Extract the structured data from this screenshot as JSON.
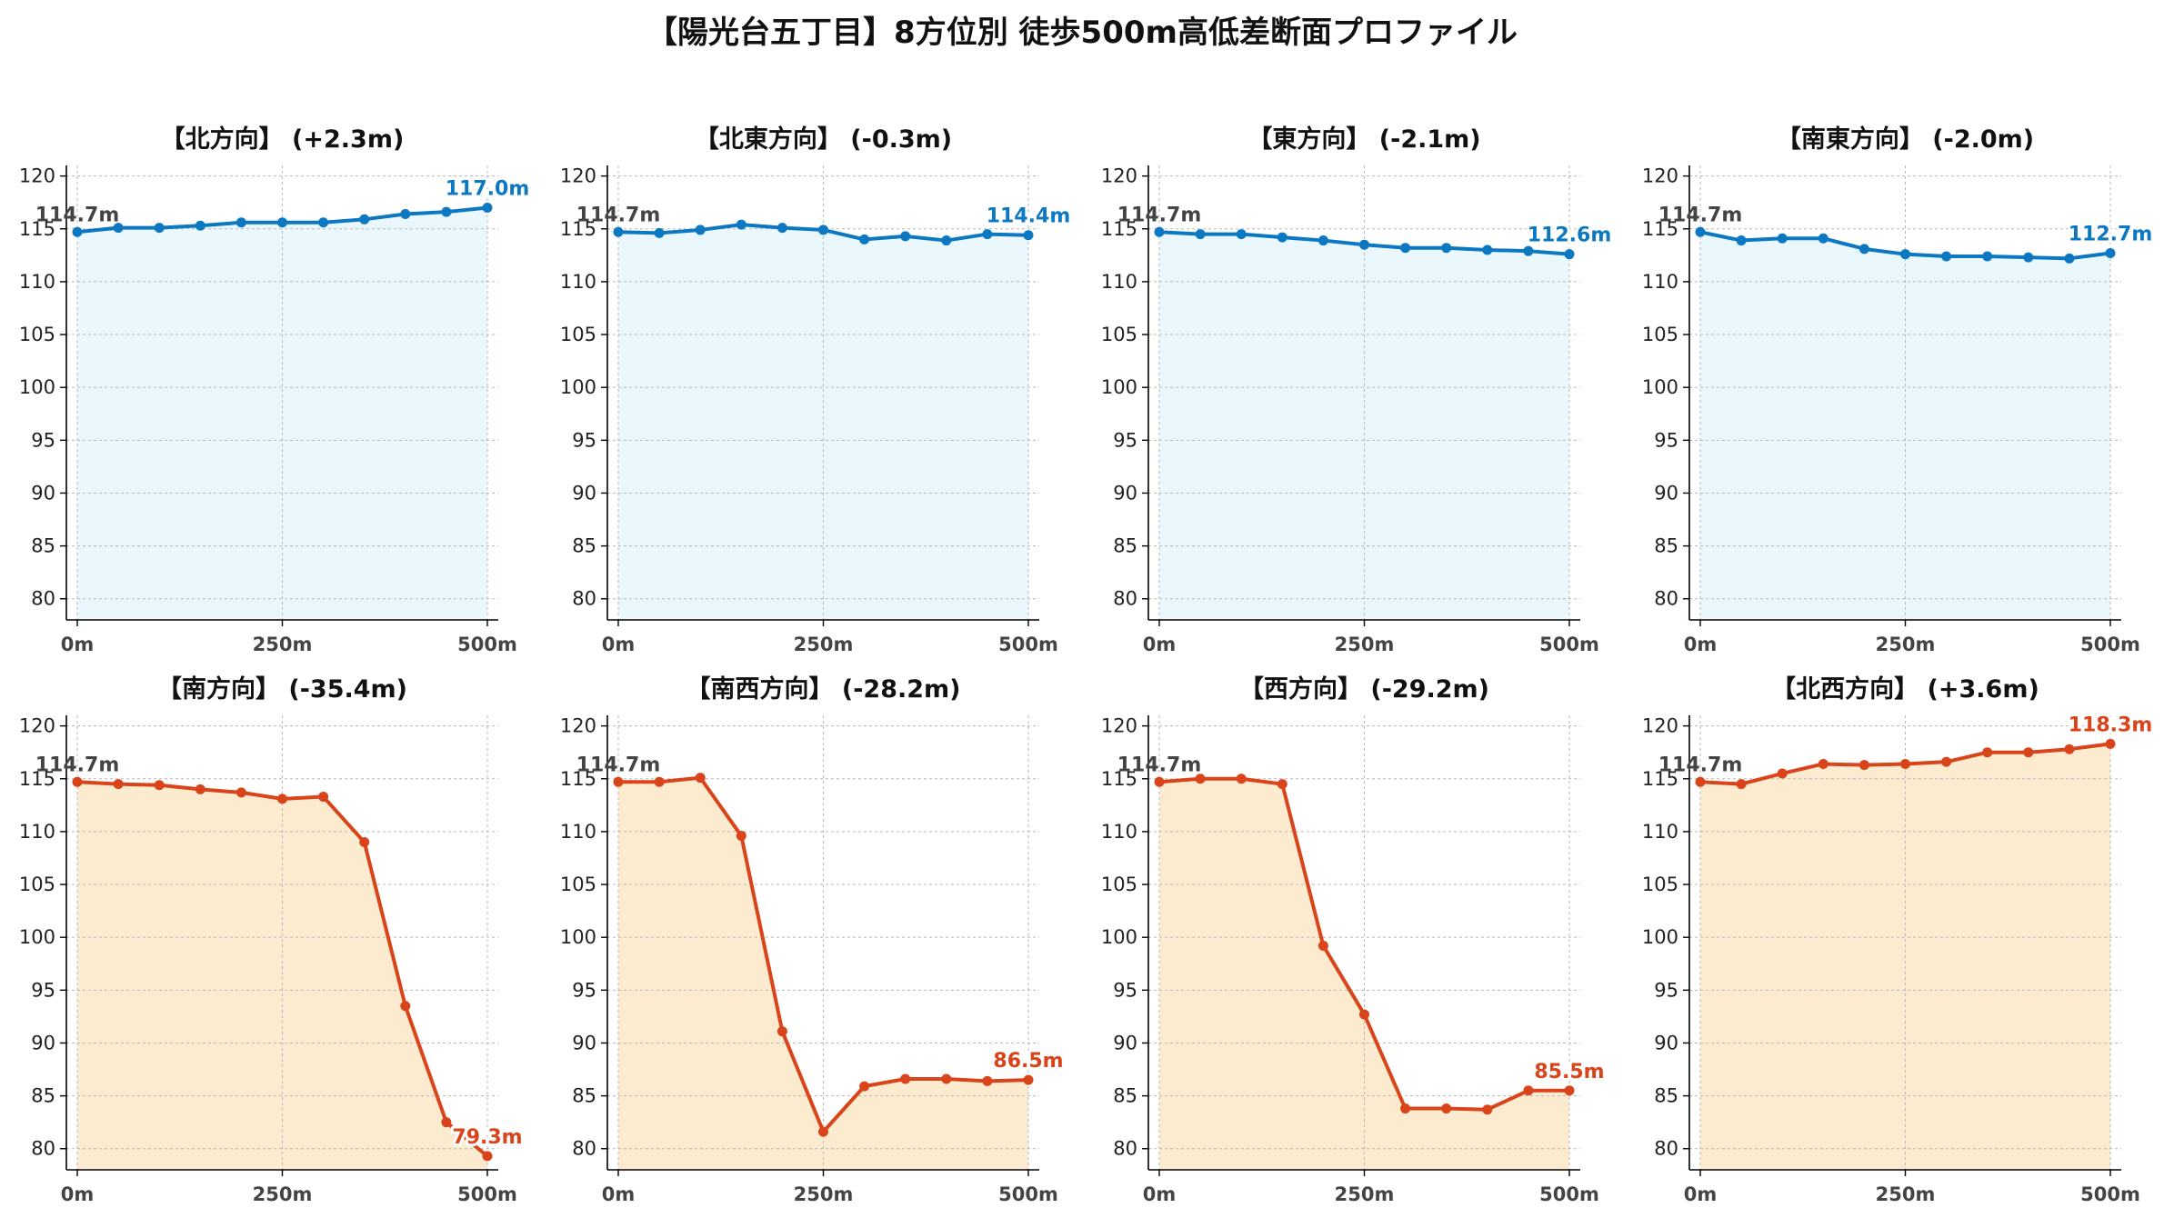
{
  "title": "【陽光台五丁目】8方位別 徒歩500m高低差断面プロファイル",
  "colors": {
    "up_line": "#0c78c2",
    "up_fill": "#eaf7fc",
    "down_line": "#d9441a",
    "down_fill": "#fdebd0",
    "start_label": "#444444"
  },
  "chart_data": [
    {
      "type": "area",
      "title": "【北方向】 (+2.3m)",
      "x": [
        0,
        50,
        100,
        150,
        200,
        250,
        300,
        350,
        400,
        450,
        500
      ],
      "x_tick_values": [
        0,
        250,
        500
      ],
      "x_tick_labels": [
        "0m",
        "250m",
        "500m"
      ],
      "y": [
        114.7,
        115.1,
        115.1,
        115.3,
        115.6,
        115.6,
        115.6,
        115.9,
        116.4,
        116.6,
        117.0
      ],
      "ylim": [
        78,
        121
      ],
      "yticks": [
        80,
        85,
        90,
        95,
        100,
        105,
        110,
        115,
        120
      ],
      "start_label": "114.7m",
      "end_label": "117.0m",
      "tone": "up",
      "grid": true
    },
    {
      "type": "area",
      "title": "【北東方向】 (-0.3m)",
      "x": [
        0,
        50,
        100,
        150,
        200,
        250,
        300,
        350,
        400,
        450,
        500
      ],
      "x_tick_values": [
        0,
        250,
        500
      ],
      "x_tick_labels": [
        "0m",
        "250m",
        "500m"
      ],
      "y": [
        114.7,
        114.6,
        114.9,
        115.4,
        115.1,
        114.9,
        114.0,
        114.3,
        113.9,
        114.5,
        114.4
      ],
      "ylim": [
        78,
        121
      ],
      "yticks": [
        80,
        85,
        90,
        95,
        100,
        105,
        110,
        115,
        120
      ],
      "start_label": "114.7m",
      "end_label": "114.4m",
      "tone": "up",
      "grid": true
    },
    {
      "type": "area",
      "title": "【東方向】 (-2.1m)",
      "x": [
        0,
        50,
        100,
        150,
        200,
        250,
        300,
        350,
        400,
        450,
        500
      ],
      "x_tick_values": [
        0,
        250,
        500
      ],
      "x_tick_labels": [
        "0m",
        "250m",
        "500m"
      ],
      "y": [
        114.7,
        114.5,
        114.5,
        114.2,
        113.9,
        113.5,
        113.2,
        113.2,
        113.0,
        112.9,
        112.6
      ],
      "ylim": [
        78,
        121
      ],
      "yticks": [
        80,
        85,
        90,
        95,
        100,
        105,
        110,
        115,
        120
      ],
      "start_label": "114.7m",
      "end_label": "112.6m",
      "tone": "up",
      "grid": true
    },
    {
      "type": "area",
      "title": "【南東方向】 (-2.0m)",
      "x": [
        0,
        50,
        100,
        150,
        200,
        250,
        300,
        350,
        400,
        450,
        500
      ],
      "x_tick_values": [
        0,
        250,
        500
      ],
      "x_tick_labels": [
        "0m",
        "250m",
        "500m"
      ],
      "y": [
        114.7,
        113.9,
        114.1,
        114.1,
        113.1,
        112.6,
        112.4,
        112.4,
        112.3,
        112.2,
        112.7
      ],
      "ylim": [
        78,
        121
      ],
      "yticks": [
        80,
        85,
        90,
        95,
        100,
        105,
        110,
        115,
        120
      ],
      "start_label": "114.7m",
      "end_label": "112.7m",
      "tone": "up",
      "grid": true
    },
    {
      "type": "area",
      "title": "【南方向】 (-35.4m)",
      "x": [
        0,
        50,
        100,
        150,
        200,
        250,
        300,
        350,
        400,
        450,
        500
      ],
      "x_tick_values": [
        0,
        250,
        500
      ],
      "x_tick_labels": [
        "0m",
        "250m",
        "500m"
      ],
      "y": [
        114.7,
        114.5,
        114.4,
        114.0,
        113.7,
        113.1,
        113.3,
        109.0,
        93.5,
        82.5,
        79.3
      ],
      "ylim": [
        78,
        121
      ],
      "yticks": [
        80,
        85,
        90,
        95,
        100,
        105,
        110,
        115,
        120
      ],
      "start_label": "114.7m",
      "end_label": "79.3m",
      "tone": "down",
      "grid": true
    },
    {
      "type": "area",
      "title": "【南西方向】 (-28.2m)",
      "x": [
        0,
        50,
        100,
        150,
        200,
        250,
        300,
        350,
        400,
        450,
        500
      ],
      "x_tick_values": [
        0,
        250,
        500
      ],
      "x_tick_labels": [
        "0m",
        "250m",
        "500m"
      ],
      "y": [
        114.7,
        114.7,
        115.1,
        109.6,
        91.1,
        81.6,
        85.9,
        86.6,
        86.6,
        86.4,
        86.5
      ],
      "ylim": [
        78,
        121
      ],
      "yticks": [
        80,
        85,
        90,
        95,
        100,
        105,
        110,
        115,
        120
      ],
      "start_label": "114.7m",
      "end_label": "86.5m",
      "tone": "down",
      "grid": true
    },
    {
      "type": "area",
      "title": "【西方向】 (-29.2m)",
      "x": [
        0,
        50,
        100,
        150,
        200,
        250,
        300,
        350,
        400,
        450,
        500
      ],
      "x_tick_values": [
        0,
        250,
        500
      ],
      "x_tick_labels": [
        "0m",
        "250m",
        "500m"
      ],
      "y": [
        114.7,
        115.0,
        115.0,
        114.5,
        99.2,
        92.7,
        83.8,
        83.8,
        83.7,
        85.5,
        85.5
      ],
      "ylim": [
        78,
        121
      ],
      "yticks": [
        80,
        85,
        90,
        95,
        100,
        105,
        110,
        115,
        120
      ],
      "start_label": "114.7m",
      "end_label": "85.5m",
      "tone": "down",
      "grid": true
    },
    {
      "type": "area",
      "title": "【北西方向】 (+3.6m)",
      "x": [
        0,
        50,
        100,
        150,
        200,
        250,
        300,
        350,
        400,
        450,
        500
      ],
      "x_tick_values": [
        0,
        250,
        500
      ],
      "x_tick_labels": [
        "0m",
        "250m",
        "500m"
      ],
      "y": [
        114.7,
        114.5,
        115.5,
        116.4,
        116.3,
        116.4,
        116.6,
        117.5,
        117.5,
        117.8,
        118.3
      ],
      "ylim": [
        78,
        121
      ],
      "yticks": [
        80,
        85,
        90,
        95,
        100,
        105,
        110,
        115,
        120
      ],
      "start_label": "114.7m",
      "end_label": "118.3m",
      "tone": "down",
      "grid": true
    }
  ]
}
